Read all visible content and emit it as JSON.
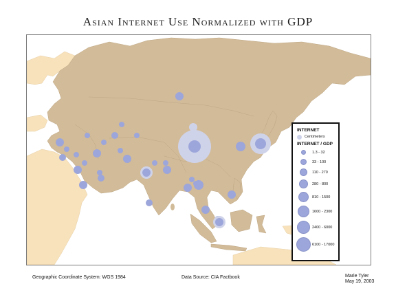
{
  "title": "Asian Internet Use Normalized with GDP",
  "legend": {
    "title": "INTERNET",
    "centimeters_label": "Centimeters",
    "subtitle": "INTERNET / GDP",
    "classes": [
      "1.3 - 32",
      "33 - 100",
      "110 - 270",
      "280 - 800",
      "810 - 1500",
      "1600 - 2300",
      "2400 - 6000",
      "6100 - 17000"
    ]
  },
  "footer": {
    "projection": "Geographic Coordinate System: WGS 1984",
    "source": "Data Source:  CIA Factbook",
    "author": "Marie Tyler",
    "date": "May 19, 2003"
  },
  "colors": {
    "asia": "#d2bb98",
    "other_land": "#f8e2bb",
    "water": "#ffffff",
    "symbol": "#9da6da",
    "halo": "#cfd3ea"
  }
}
